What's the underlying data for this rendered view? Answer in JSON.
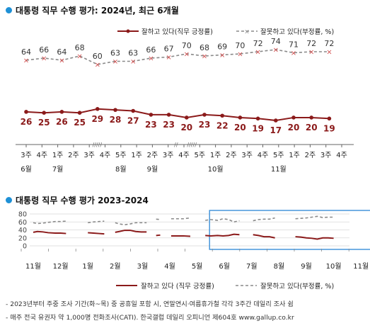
{
  "chart_data": [
    {
      "type": "line",
      "title": "대통령 직무 수행 평가: 2024년, 최근 6개월",
      "legend": {
        "placement": "top-right"
      },
      "x_labels": [
        "3주",
        "4주",
        "1주",
        "2주",
        "3주",
        "4주",
        "5주",
        "1주",
        "2주",
        "3주",
        "4주",
        "5주",
        "1주",
        "2주",
        "3주",
        "4주",
        "5주",
        "1주",
        "2주",
        "3주",
        "4주"
      ],
      "month_labels": [
        {
          "index": 0,
          "label": "6월"
        },
        {
          "index": 2,
          "label": "7월"
        },
        {
          "index": 6,
          "label": "8월"
        },
        {
          "index": 8,
          "label": "9월"
        },
        {
          "index": 12,
          "label": "10월"
        },
        {
          "index": 16,
          "label": "11월"
        }
      ],
      "gap_markers": [
        {
          "after_index": 4,
          "label": "/////"
        },
        {
          "after_index": 9,
          "label": "//"
        },
        {
          "after_index": 10,
          "label": "/////"
        }
      ],
      "series": [
        {
          "name": "잘하고 있다(직무 긍정률)",
          "color": "#8b1a1a",
          "values": [
            26,
            25,
            26,
            25,
            29,
            28,
            27,
            23,
            23,
            20,
            23,
            22,
            20,
            19,
            17,
            20,
            20,
            19
          ]
        },
        {
          "name": "잘못하고 있다(부정률, %)",
          "color": "#8a8a8a",
          "values": [
            64,
            66,
            64,
            68,
            60,
            63,
            63,
            66,
            67,
            70,
            68,
            69,
            70,
            72,
            74,
            71,
            72,
            72
          ]
        }
      ]
    },
    {
      "type": "line",
      "title": "대통령 직무 수행 평가 2023-2024",
      "ylim": [
        0,
        80
      ],
      "yticks": [
        0,
        20,
        40,
        60,
        80
      ],
      "x_labels": [
        "11월",
        "12월",
        "1월",
        "2월",
        "3월",
        "4월",
        "5월",
        "6월",
        "7월",
        "8월",
        "9월",
        "10월",
        "11월"
      ],
      "highlight_box": {
        "from_label": "6월",
        "to_label": "11월"
      },
      "series": [
        {
          "name": "잘하고 있다 (직무 긍정률)",
          "color": "#8b1a1a",
          "segments": [
            [
              [
                0,
                34
              ],
              [
                0.15,
                36
              ],
              [
                0.35,
                35
              ],
              [
                0.55,
                33
              ],
              [
                0.8,
                32
              ],
              [
                1.0,
                32
              ],
              [
                1.2,
                31
              ]
            ],
            [
              [
                2.0,
                33
              ],
              [
                2.2,
                32
              ],
              [
                2.4,
                31
              ],
              [
                2.6,
                30
              ]
            ],
            [
              [
                3.0,
                34
              ],
              [
                3.15,
                36
              ],
              [
                3.35,
                39
              ],
              [
                3.55,
                39
              ],
              [
                3.75,
                36
              ],
              [
                3.95,
                35
              ],
              [
                4.15,
                35
              ]
            ],
            [
              [
                4.5,
                26
              ],
              [
                4.65,
                27
              ]
            ],
            [
              [
                5.05,
                25
              ],
              [
                5.25,
                25
              ],
              [
                5.5,
                25
              ],
              [
                5.75,
                24
              ]
            ],
            [
              [
                6.3,
                26
              ],
              [
                6.5,
                25
              ],
              [
                6.75,
                26
              ],
              [
                6.95,
                25
              ],
              [
                7.15,
                26
              ],
              [
                7.35,
                29
              ],
              [
                7.55,
                28
              ]
            ],
            [
              [
                8.05,
                28
              ],
              [
                8.25,
                26
              ],
              [
                8.45,
                23
              ],
              [
                8.65,
                23
              ],
              [
                8.85,
                20
              ]
            ],
            [
              [
                9.6,
                23
              ],
              [
                9.8,
                22
              ],
              [
                10.0,
                20
              ],
              [
                10.2,
                19
              ],
              [
                10.4,
                17
              ],
              [
                10.6,
                20
              ],
              [
                10.8,
                20
              ],
              [
                11.0,
                19
              ]
            ]
          ]
        },
        {
          "name": "잘못하고 있다(부정률, %)",
          "color": "#8a8a8a",
          "segments": [
            [
              [
                0,
                58
              ],
              [
                0.15,
                56
              ],
              [
                0.35,
                57
              ],
              [
                0.55,
                59
              ],
              [
                0.8,
                61
              ],
              [
                1.0,
                61
              ],
              [
                1.2,
                62
              ]
            ],
            [
              [
                2.0,
                58
              ],
              [
                2.2,
                60
              ],
              [
                2.4,
                61
              ],
              [
                2.6,
                62
              ]
            ],
            [
              [
                3.0,
                58
              ],
              [
                3.15,
                55
              ],
              [
                3.35,
                53
              ],
              [
                3.55,
                55
              ],
              [
                3.75,
                58
              ],
              [
                3.95,
                58
              ],
              [
                4.15,
                58
              ]
            ],
            [
              [
                4.5,
                67
              ],
              [
                4.65,
                66
              ]
            ],
            [
              [
                5.05,
                68
              ],
              [
                5.25,
                68
              ],
              [
                5.5,
                68
              ],
              [
                5.75,
                70
              ]
            ],
            [
              [
                6.3,
                64
              ],
              [
                6.5,
                66
              ],
              [
                6.75,
                64
              ],
              [
                6.95,
                68
              ],
              [
                7.15,
                66
              ],
              [
                7.35,
                60
              ],
              [
                7.55,
                63
              ]
            ],
            [
              [
                8.05,
                63
              ],
              [
                8.25,
                66
              ],
              [
                8.45,
                67
              ],
              [
                8.65,
                67
              ],
              [
                8.85,
                70
              ]
            ],
            [
              [
                9.6,
                68
              ],
              [
                9.8,
                69
              ],
              [
                10.0,
                70
              ],
              [
                10.2,
                72
              ],
              [
                10.4,
                74
              ],
              [
                10.6,
                71
              ],
              [
                10.8,
                72
              ],
              [
                11.0,
                72
              ]
            ]
          ]
        }
      ]
    }
  ],
  "footnotes": [
    "- 2023년부터 주중 조사 기간(화~목) 중 공휴일 포함 시, 연말연시·여름휴가철 각각 3주간 데일리 조사 쉼",
    "- 매주 전국 유권자 약 1,000명 전화조사(CATI). 한국갤럽 데일리 오피니언 제604호 www.gallup.co.kr"
  ],
  "colors": {
    "accent": "#1e90d6",
    "positive": "#8b1a1a",
    "negative": "#8a8a8a"
  }
}
